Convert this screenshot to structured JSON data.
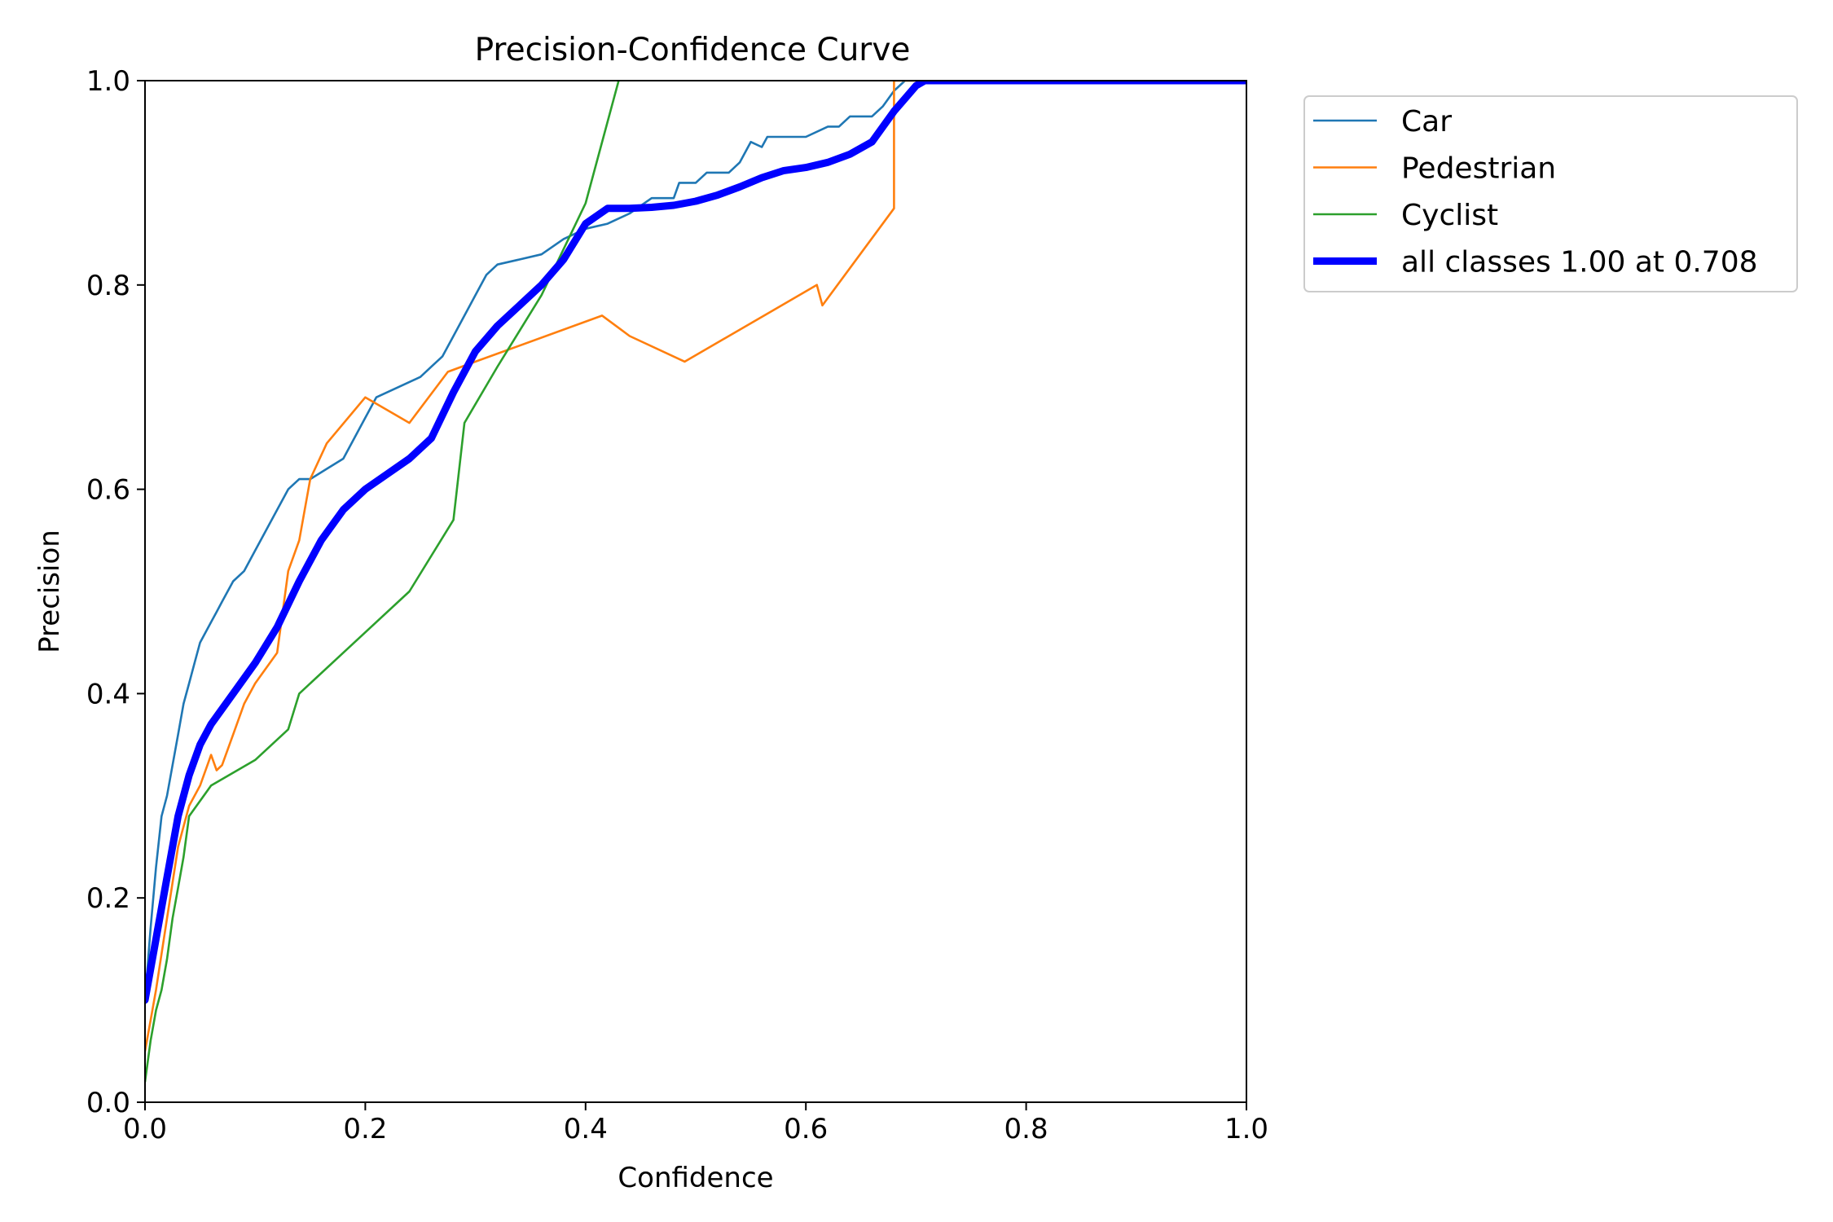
{
  "chart_data": {
    "type": "line",
    "title": "Precision-Confidence Curve",
    "xlabel": "Confidence",
    "ylabel": "Precision",
    "xlim": [
      0,
      1
    ],
    "ylim": [
      0,
      1
    ],
    "x_ticks": [
      "0.0",
      "0.2",
      "0.4",
      "0.6",
      "0.8",
      "1.0"
    ],
    "y_ticks": [
      "0.0",
      "0.2",
      "0.4",
      "0.6",
      "0.8",
      "1.0"
    ],
    "grid": false,
    "legend_position": "upper-right-outside",
    "series": [
      {
        "name": "Car",
        "color": "#1f77b4",
        "points": [
          [
            0.0,
            0.1
          ],
          [
            0.005,
            0.17
          ],
          [
            0.01,
            0.23
          ],
          [
            0.015,
            0.28
          ],
          [
            0.02,
            0.3
          ],
          [
            0.025,
            0.33
          ],
          [
            0.03,
            0.36
          ],
          [
            0.035,
            0.39
          ],
          [
            0.04,
            0.41
          ],
          [
            0.045,
            0.43
          ],
          [
            0.05,
            0.45
          ],
          [
            0.06,
            0.47
          ],
          [
            0.065,
            0.48
          ],
          [
            0.07,
            0.49
          ],
          [
            0.08,
            0.51
          ],
          [
            0.09,
            0.52
          ],
          [
            0.1,
            0.54
          ],
          [
            0.11,
            0.56
          ],
          [
            0.12,
            0.58
          ],
          [
            0.13,
            0.6
          ],
          [
            0.14,
            0.61
          ],
          [
            0.15,
            0.61
          ],
          [
            0.165,
            0.62
          ],
          [
            0.18,
            0.63
          ],
          [
            0.19,
            0.65
          ],
          [
            0.2,
            0.67
          ],
          [
            0.21,
            0.69
          ],
          [
            0.23,
            0.7
          ],
          [
            0.25,
            0.71
          ],
          [
            0.26,
            0.72
          ],
          [
            0.27,
            0.73
          ],
          [
            0.28,
            0.75
          ],
          [
            0.29,
            0.77
          ],
          [
            0.3,
            0.79
          ],
          [
            0.31,
            0.81
          ],
          [
            0.32,
            0.82
          ],
          [
            0.34,
            0.825
          ],
          [
            0.36,
            0.83
          ],
          [
            0.38,
            0.845
          ],
          [
            0.4,
            0.855
          ],
          [
            0.42,
            0.86
          ],
          [
            0.44,
            0.87
          ],
          [
            0.46,
            0.885
          ],
          [
            0.48,
            0.885
          ],
          [
            0.485,
            0.9
          ],
          [
            0.5,
            0.9
          ],
          [
            0.51,
            0.91
          ],
          [
            0.53,
            0.91
          ],
          [
            0.54,
            0.92
          ],
          [
            0.55,
            0.94
          ],
          [
            0.56,
            0.935
          ],
          [
            0.565,
            0.945
          ],
          [
            0.6,
            0.945
          ],
          [
            0.62,
            0.955
          ],
          [
            0.63,
            0.955
          ],
          [
            0.64,
            0.965
          ],
          [
            0.66,
            0.965
          ],
          [
            0.67,
            0.975
          ],
          [
            0.68,
            0.99
          ],
          [
            0.69,
            1.0
          ],
          [
            1.0,
            1.0
          ]
        ]
      },
      {
        "name": "Pedestrian",
        "color": "#ff7f0e",
        "points": [
          [
            0.0,
            0.05
          ],
          [
            0.005,
            0.08
          ],
          [
            0.01,
            0.11
          ],
          [
            0.02,
            0.18
          ],
          [
            0.03,
            0.25
          ],
          [
            0.04,
            0.29
          ],
          [
            0.05,
            0.31
          ],
          [
            0.06,
            0.34
          ],
          [
            0.065,
            0.325
          ],
          [
            0.07,
            0.33
          ],
          [
            0.08,
            0.36
          ],
          [
            0.09,
            0.39
          ],
          [
            0.1,
            0.41
          ],
          [
            0.12,
            0.44
          ],
          [
            0.13,
            0.52
          ],
          [
            0.14,
            0.55
          ],
          [
            0.15,
            0.61
          ],
          [
            0.165,
            0.645
          ],
          [
            0.2,
            0.69
          ],
          [
            0.24,
            0.665
          ],
          [
            0.275,
            0.715
          ],
          [
            0.3,
            0.725
          ],
          [
            0.415,
            0.77
          ],
          [
            0.44,
            0.75
          ],
          [
            0.49,
            0.725
          ],
          [
            0.61,
            0.8
          ],
          [
            0.615,
            0.78
          ],
          [
            0.68,
            0.875
          ],
          [
            0.68,
            1.0
          ],
          [
            1.0,
            1.0
          ]
        ]
      },
      {
        "name": "Cyclist",
        "color": "#2ca02c",
        "points": [
          [
            0.0,
            0.02
          ],
          [
            0.005,
            0.06
          ],
          [
            0.01,
            0.09
          ],
          [
            0.015,
            0.11
          ],
          [
            0.02,
            0.14
          ],
          [
            0.025,
            0.18
          ],
          [
            0.03,
            0.21
          ],
          [
            0.035,
            0.24
          ],
          [
            0.04,
            0.28
          ],
          [
            0.06,
            0.31
          ],
          [
            0.1,
            0.335
          ],
          [
            0.13,
            0.365
          ],
          [
            0.14,
            0.4
          ],
          [
            0.18,
            0.44
          ],
          [
            0.24,
            0.5
          ],
          [
            0.28,
            0.57
          ],
          [
            0.29,
            0.665
          ],
          [
            0.32,
            0.72
          ],
          [
            0.36,
            0.79
          ],
          [
            0.4,
            0.88
          ],
          [
            0.43,
            1.0
          ]
        ]
      },
      {
        "name": "all classes 1.00 at 0.708",
        "color": "#0000ff",
        "points": [
          [
            0.0,
            0.1
          ],
          [
            0.01,
            0.16
          ],
          [
            0.02,
            0.22
          ],
          [
            0.03,
            0.28
          ],
          [
            0.04,
            0.32
          ],
          [
            0.05,
            0.35
          ],
          [
            0.06,
            0.37
          ],
          [
            0.07,
            0.385
          ],
          [
            0.08,
            0.4
          ],
          [
            0.1,
            0.43
          ],
          [
            0.12,
            0.465
          ],
          [
            0.14,
            0.51
          ],
          [
            0.16,
            0.55
          ],
          [
            0.18,
            0.58
          ],
          [
            0.2,
            0.6
          ],
          [
            0.22,
            0.615
          ],
          [
            0.24,
            0.63
          ],
          [
            0.26,
            0.65
          ],
          [
            0.28,
            0.695
          ],
          [
            0.3,
            0.735
          ],
          [
            0.32,
            0.76
          ],
          [
            0.34,
            0.78
          ],
          [
            0.36,
            0.8
          ],
          [
            0.38,
            0.825
          ],
          [
            0.4,
            0.86
          ],
          [
            0.42,
            0.875
          ],
          [
            0.44,
            0.875
          ],
          [
            0.46,
            0.876
          ],
          [
            0.48,
            0.878
          ],
          [
            0.5,
            0.882
          ],
          [
            0.52,
            0.888
          ],
          [
            0.54,
            0.896
          ],
          [
            0.56,
            0.905
          ],
          [
            0.58,
            0.912
          ],
          [
            0.6,
            0.915
          ],
          [
            0.62,
            0.92
          ],
          [
            0.64,
            0.928
          ],
          [
            0.66,
            0.94
          ],
          [
            0.68,
            0.97
          ],
          [
            0.7,
            0.995
          ],
          [
            0.708,
            1.0
          ],
          [
            1.0,
            1.0
          ]
        ]
      }
    ]
  }
}
